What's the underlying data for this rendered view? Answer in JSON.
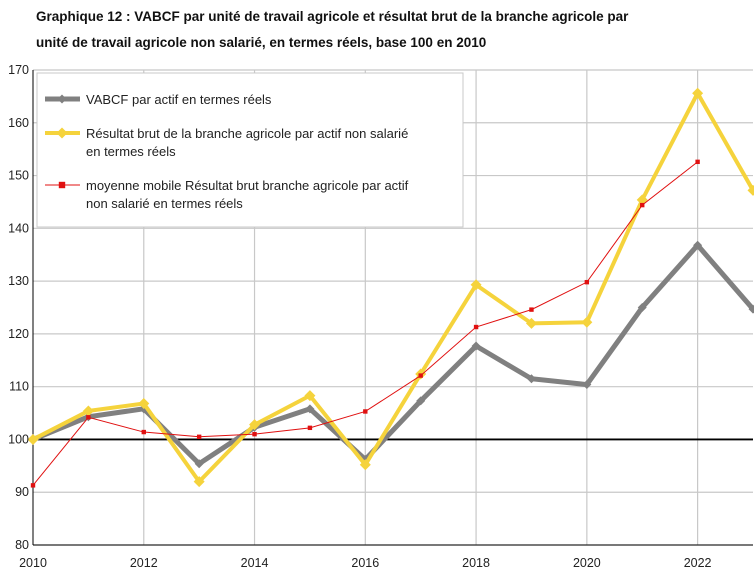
{
  "chart_data": {
    "type": "line",
    "title_lines": [
      "Graphique 12 : VABCF par unité de travail agricole et résultat brut de la branche agricole par",
      "unité de travail agricole non salarié, en termes réels, base 100 en 2010"
    ],
    "x": [
      2010,
      2011,
      2012,
      2013,
      2014,
      2015,
      2016,
      2017,
      2018,
      2019,
      2020,
      2021,
      2022,
      2023
    ],
    "xticks": [
      "2010",
      "2012",
      "2014",
      "2016",
      "2018",
      "2020",
      "2022"
    ],
    "yticks": [
      "80",
      "90",
      "100",
      "110",
      "120",
      "130",
      "140",
      "150",
      "160",
      "170"
    ],
    "xlim": [
      2010,
      2023
    ],
    "ylim": [
      80,
      170
    ],
    "reference_line": 100,
    "grid": true,
    "legend_position": "top-left",
    "series": [
      {
        "name": "VABCF par actif en termes réels",
        "color": "#808080",
        "values": [
          100,
          104.3,
          105.8,
          95.4,
          102.3,
          105.8,
          96.2,
          107.3,
          117.7,
          111.5,
          110.4,
          125,
          136.8,
          124.7
        ]
      },
      {
        "name": "Résultat brut de la branche agricole par actif non salarié en termes réels",
        "color": "#f5d33c",
        "values": [
          100,
          105.4,
          106.8,
          92,
          102.8,
          108.3,
          95.2,
          112.4,
          129.3,
          122,
          122.2,
          145.4,
          165.6,
          147.2
        ]
      },
      {
        "name": "moyenne mobile Résultat brut branche agricole par actif non salarié en termes réels",
        "color": "#e01010",
        "values": [
          91.3,
          104.2,
          101.4,
          100.5,
          101,
          102.2,
          105.3,
          112.1,
          121.3,
          124.6,
          129.8,
          144.4,
          152.6,
          null
        ]
      }
    ]
  }
}
